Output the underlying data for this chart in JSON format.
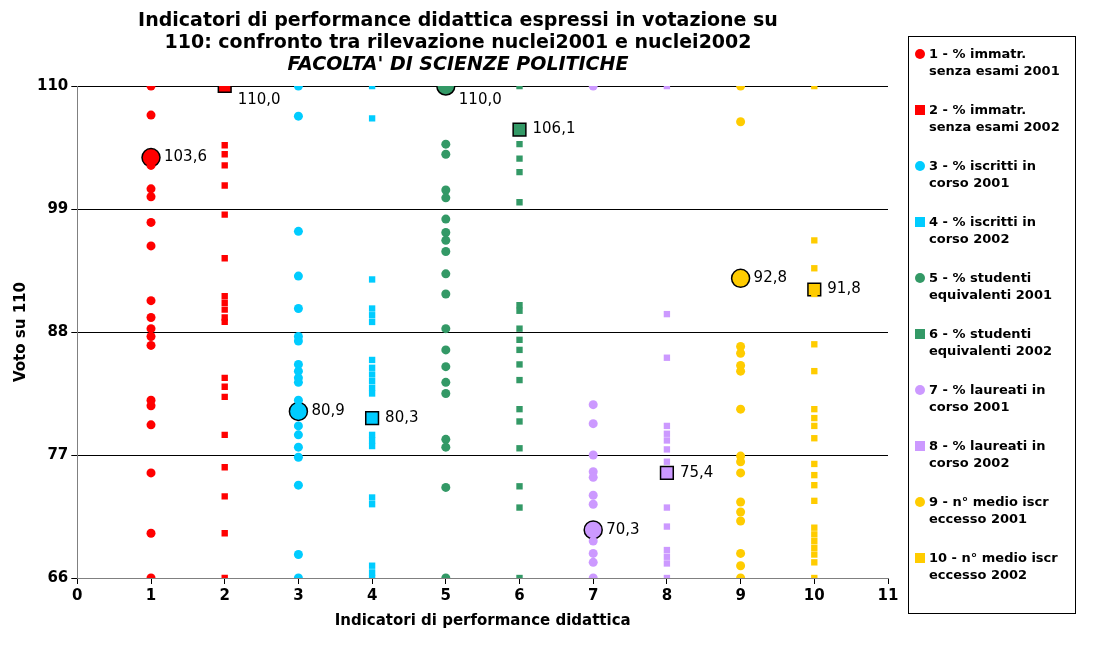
{
  "chart_data": {
    "type": "scatter",
    "title": "Indicatori di performance didattica espressi in votazione su 110: confronto tra rilevazione nuclei2001 e nuclei2002",
    "subtitle": "FACOLTA' DI SCIENZE POLITICHE",
    "xlabel": "Indicatori di performance didattica",
    "ylabel": "Voto su 110",
    "xlim": [
      0,
      11
    ],
    "xticks": [
      0,
      1,
      2,
      3,
      4,
      5,
      6,
      7,
      8,
      9,
      10,
      11
    ],
    "ylim": [
      66,
      110
    ],
    "yticks": [
      66,
      77,
      88,
      99,
      110
    ],
    "grid": "y",
    "legend": "right",
    "series": [
      {
        "name": "1 - % immatr. senza esami 2001",
        "color": "#ff0000",
        "marker": "circle",
        "x": [
          1,
          1,
          1,
          1,
          1,
          1,
          1,
          1,
          1,
          1,
          1,
          1,
          1,
          1,
          1,
          1,
          1,
          1
        ],
        "values": [
          110,
          107.4,
          102.9,
          100.8,
          100.1,
          97.8,
          95.7,
          90.8,
          89.3,
          88.3,
          87.6,
          86.8,
          81.9,
          81.4,
          79.7,
          75.4,
          70.0,
          66
        ]
      },
      {
        "name": "2 - % immatr. senza esami 2002",
        "color": "#ff0000",
        "marker": "square",
        "x": [
          2,
          2,
          2,
          2,
          2,
          2,
          2,
          2,
          2,
          2,
          2,
          2,
          2,
          2,
          2,
          2,
          2,
          2,
          2
        ],
        "values": [
          104.7,
          103.9,
          102.9,
          101.1,
          98.5,
          94.6,
          91.2,
          90.6,
          90.0,
          89.3,
          88.9,
          83.9,
          83.1,
          82.2,
          78.8,
          75.9,
          73.3,
          70.0,
          66
        ]
      },
      {
        "name": "3 - % iscritti in corso 2001",
        "color": "#00ccff",
        "marker": "circle",
        "x": [
          3,
          3,
          3,
          3,
          3,
          3,
          3,
          3,
          3,
          3,
          3,
          3,
          3,
          3,
          3,
          3,
          3,
          3,
          3
        ],
        "values": [
          110,
          107.3,
          97.0,
          93.0,
          90.1,
          87.6,
          87.2,
          85.1,
          84.5,
          83.9,
          83.5,
          81.9,
          79.6,
          78.8,
          77.7,
          76.8,
          74.3,
          68.1,
          66
        ]
      },
      {
        "name": "4 - % iscritti in corso 2002",
        "color": "#00ccff",
        "marker": "square",
        "x": [
          4,
          4,
          4,
          4,
          4,
          4,
          4,
          4,
          4,
          4,
          4,
          4,
          4,
          4,
          4,
          4,
          4,
          4,
          4,
          4
        ],
        "values": [
          110,
          107.1,
          92.7,
          90.1,
          89.5,
          88.9,
          85.5,
          84.8,
          84.2,
          83.6,
          83.0,
          82.5,
          78.8,
          78.3,
          77.8,
          73.2,
          72.6,
          67.1,
          66.5,
          66
        ]
      },
      {
        "name": "5 - % studenti equivalenti 2001",
        "color": "#339966",
        "marker": "circle",
        "x": [
          5,
          5,
          5,
          5,
          5,
          5,
          5,
          5,
          5,
          5,
          5,
          5,
          5,
          5,
          5,
          5,
          5,
          5,
          5
        ],
        "values": [
          104.8,
          103.9,
          100.7,
          100.0,
          98.1,
          96.9,
          96.2,
          95.2,
          93.2,
          91.4,
          88.3,
          86.4,
          84.9,
          83.5,
          82.5,
          78.4,
          77.7,
          74.1,
          66
        ]
      },
      {
        "name": "6 - % studenti equivalenti 2002",
        "color": "#339966",
        "marker": "square",
        "x": [
          6,
          6,
          6,
          6,
          6,
          6,
          6,
          6,
          6,
          6,
          6,
          6,
          6,
          6,
          6,
          6,
          6,
          6
        ],
        "values": [
          110,
          104.8,
          103.5,
          102.3,
          99.6,
          90.4,
          89.9,
          88.3,
          87.3,
          86.4,
          85.1,
          83.7,
          81.1,
          80.0,
          77.6,
          74.2,
          72.3,
          66
        ]
      },
      {
        "name": "7 - % laureati in corso 2001",
        "color": "#cc99ff",
        "marker": "circle",
        "x": [
          7,
          7,
          7,
          7,
          7,
          7,
          7,
          7,
          7,
          7,
          7,
          7
        ],
        "values": [
          110,
          81.5,
          79.8,
          77.0,
          75.5,
          75.0,
          73.4,
          72.6,
          69.3,
          68.2,
          67.4,
          66
        ]
      },
      {
        "name": "8 - % laureati in corso 2002",
        "color": "#cc99ff",
        "marker": "square",
        "x": [
          8,
          8,
          8,
          8,
          8,
          8,
          8,
          8,
          8,
          8,
          8,
          8,
          8,
          8
        ],
        "values": [
          110,
          89.6,
          85.7,
          79.6,
          78.9,
          78.3,
          77.5,
          76.4,
          72.3,
          70.6,
          68.5,
          67.9,
          67.3,
          66
        ]
      },
      {
        "name": "9 - n° medio iscr eccesso 2001",
        "color": "#ffcc00",
        "marker": "circle",
        "x": [
          9,
          9,
          9,
          9,
          9,
          9,
          9,
          9,
          9,
          9,
          9,
          9,
          9,
          9,
          9,
          9
        ],
        "values": [
          110,
          106.8,
          86.7,
          86.1,
          85.0,
          84.5,
          81.1,
          76.9,
          76.4,
          75.4,
          72.8,
          71.9,
          71.1,
          68.2,
          67.1,
          66
        ]
      },
      {
        "name": "10 - n° medio iscr eccesso 2002",
        "color": "#ffcc00",
        "marker": "square",
        "x": [
          10,
          10,
          10,
          10,
          10,
          10,
          10,
          10,
          10,
          10,
          10,
          10,
          10,
          10,
          10,
          10,
          10,
          10,
          10,
          10,
          10
        ],
        "values": [
          110,
          96.2,
          93.7,
          91.4,
          86.9,
          84.5,
          81.1,
          80.3,
          79.6,
          78.5,
          76.2,
          75.2,
          74.3,
          72.9,
          70.5,
          69.9,
          69.3,
          68.7,
          68.1,
          67.4,
          66
        ]
      },
      {
        "marker": "circle",
        "x": [
          1,
          3,
          5,
          7,
          9
        ],
        "values": [
          103.6,
          80.9,
          110.0,
          70.3,
          92.8
        ],
        "colors": [
          "#ff0000",
          "#00ccff",
          "#339966",
          "#cc99ff",
          "#ffcc00"
        ],
        "value_labels": [
          "103,6",
          "80,9",
          "110,0",
          "70,3",
          "92,8"
        ]
      },
      {
        "marker": "square",
        "x": [
          2,
          4,
          6,
          8,
          10
        ],
        "values": [
          110.0,
          80.3,
          106.1,
          75.4,
          91.8
        ],
        "colors": [
          "#ff0000",
          "#00ccff",
          "#339966",
          "#cc99ff",
          "#ffcc00"
        ],
        "value_labels": [
          "110,0",
          "80,3",
          "106,1",
          "75,4",
          "91,8"
        ]
      }
    ]
  }
}
